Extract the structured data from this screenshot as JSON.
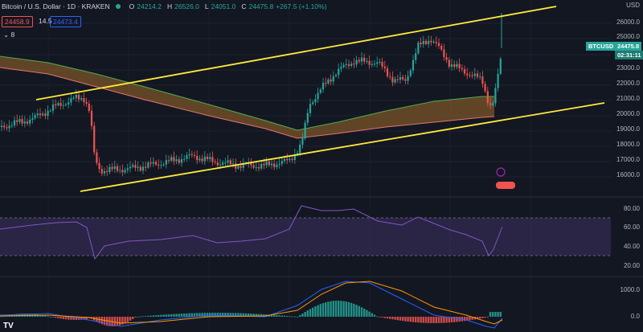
{
  "header": {
    "title": "Bitcoin / U.S. Dollar · 1D · KRAKEN",
    "open_label": "O",
    "open": "24214.2",
    "high_label": "H",
    "high": "26526.0",
    "low_label": "L",
    "low": "24051.0",
    "close_label": "C",
    "close": "24475.8",
    "change": "+267.5 (+1.10%)"
  },
  "order_bar": {
    "sell_price": "24458.9",
    "spread": "14.5",
    "buy_price": "24473.4"
  },
  "indicators_toggle": {
    "icon": "chevron-down-icon",
    "count": "8"
  },
  "price_axis": {
    "currency": "USD",
    "labels": [
      "26000.0",
      "25000.0",
      "23000.0",
      "22000.0",
      "21000.0",
      "20000.0",
      "19000.0",
      "18000.0",
      "17000.0",
      "16000.0"
    ]
  },
  "price_tag": {
    "symbol": "BTCUSD",
    "price": "24475.8",
    "countdown": "02:31:11"
  },
  "rsi_axis": {
    "labels": [
      "80.00",
      "60.00",
      "40.00",
      "20.00"
    ]
  },
  "macd_axis": {
    "labels": [
      "1000.0",
      "0.0"
    ]
  },
  "colors": {
    "bull": "#26a69a",
    "bear": "#ef5350",
    "trendline": "#ffeb3b",
    "rsi": "#7e57c2",
    "background": "#131722"
  },
  "logo": "TV"
}
